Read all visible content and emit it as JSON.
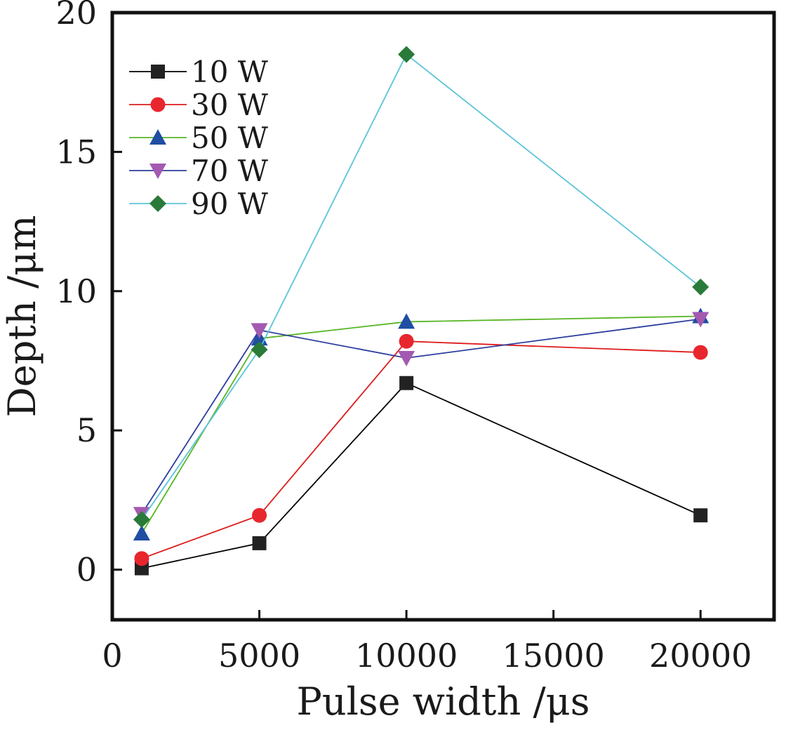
{
  "chart_data": {
    "type": "line",
    "title": "",
    "xlabel": "Pulse width /μs",
    "ylabel": "Depth /μm",
    "xlim": [
      0,
      22500
    ],
    "ylim": [
      -1.8,
      20
    ],
    "xticks": [
      0,
      5000,
      10000,
      15000,
      20000
    ],
    "yticks": [
      0,
      5,
      10,
      15,
      20
    ],
    "x_tick_labels": [
      "0",
      "5000",
      "10000",
      "15000",
      "20000"
    ],
    "y_tick_labels": [
      "0",
      "5",
      "10",
      "15",
      "20"
    ],
    "grid": false,
    "legend_position": "top-left",
    "series": [
      {
        "name": "10 W",
        "color": "#000000",
        "marker_color": "#222222",
        "marker": "square",
        "x": [
          1000,
          5000,
          10000,
          20000
        ],
        "y": [
          0.05,
          0.95,
          6.7,
          1.95
        ]
      },
      {
        "name": "30 W",
        "color": "#dd1c1c",
        "marker_color": "#e8262d",
        "marker": "circle",
        "x": [
          1000,
          5000,
          10000,
          20000
        ],
        "y": [
          0.4,
          1.95,
          8.2,
          7.8
        ]
      },
      {
        "name": "50 W",
        "color": "#58b524",
        "marker_color": "#1f4ea3",
        "marker": "triangle-up",
        "x": [
          1000,
          5000,
          10000,
          20000
        ],
        "y": [
          1.3,
          8.3,
          8.9,
          9.1
        ]
      },
      {
        "name": "70 W",
        "color": "#2d3d9e",
        "marker_color": "#a35ab0",
        "marker": "triangle-down",
        "x": [
          1000,
          5000,
          10000,
          20000
        ],
        "y": [
          2.0,
          8.6,
          7.6,
          9.0
        ]
      },
      {
        "name": "90 W",
        "color": "#5bc4d8",
        "marker_color": "#2a7a3a",
        "marker": "diamond",
        "x": [
          1000,
          5000,
          10000,
          20000
        ],
        "y": [
          1.8,
          7.9,
          18.5,
          10.15
        ]
      }
    ]
  }
}
